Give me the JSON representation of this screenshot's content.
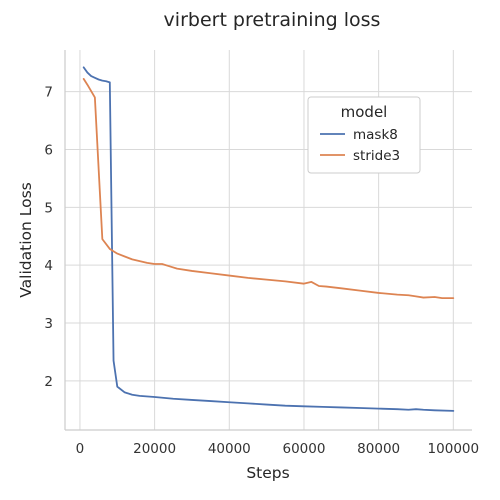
{
  "chart_data": {
    "type": "line",
    "title": "virbert pretraining loss",
    "xlabel": "Steps",
    "ylabel": "Validation Loss",
    "xlim": [
      -4000,
      105000
    ],
    "ylim": [
      1.15,
      7.72
    ],
    "xticks": [
      0,
      20000,
      40000,
      60000,
      80000,
      100000
    ],
    "yticks": [
      2,
      3,
      4,
      5,
      6,
      7
    ],
    "grid": true,
    "legend": {
      "title": "model",
      "placement": "upper-right"
    },
    "series": [
      {
        "name": "mask8",
        "color": "#4c72b0",
        "x": [
          1000,
          2000,
          3000,
          4000,
          5000,
          6000,
          7000,
          8000,
          9000,
          10000,
          12000,
          14000,
          16000,
          20000,
          25000,
          30000,
          35000,
          40000,
          45000,
          50000,
          55000,
          60000,
          65000,
          70000,
          75000,
          80000,
          85000,
          88000,
          90000,
          92000,
          95000,
          100000
        ],
        "y": [
          7.42,
          7.33,
          7.27,
          7.24,
          7.21,
          7.19,
          7.18,
          7.16,
          2.35,
          1.9,
          1.8,
          1.76,
          1.74,
          1.72,
          1.69,
          1.67,
          1.65,
          1.63,
          1.61,
          1.59,
          1.57,
          1.56,
          1.55,
          1.54,
          1.53,
          1.52,
          1.51,
          1.5,
          1.51,
          1.5,
          1.49,
          1.48
        ]
      },
      {
        "name": "stride3",
        "color": "#dd8452",
        "x": [
          1000,
          2000,
          4000,
          6000,
          8000,
          10000,
          12000,
          14000,
          16000,
          18000,
          20000,
          22000,
          24000,
          26000,
          30000,
          35000,
          40000,
          45000,
          50000,
          55000,
          60000,
          62000,
          64000,
          66000,
          70000,
          75000,
          80000,
          85000,
          88000,
          90000,
          92000,
          95000,
          97000,
          100000
        ],
        "y": [
          7.22,
          7.12,
          6.9,
          4.45,
          4.28,
          4.2,
          4.15,
          4.1,
          4.07,
          4.04,
          4.02,
          4.02,
          3.98,
          3.94,
          3.9,
          3.86,
          3.82,
          3.78,
          3.75,
          3.72,
          3.68,
          3.71,
          3.64,
          3.63,
          3.6,
          3.56,
          3.52,
          3.49,
          3.48,
          3.46,
          3.44,
          3.45,
          3.43,
          3.43
        ]
      }
    ]
  }
}
